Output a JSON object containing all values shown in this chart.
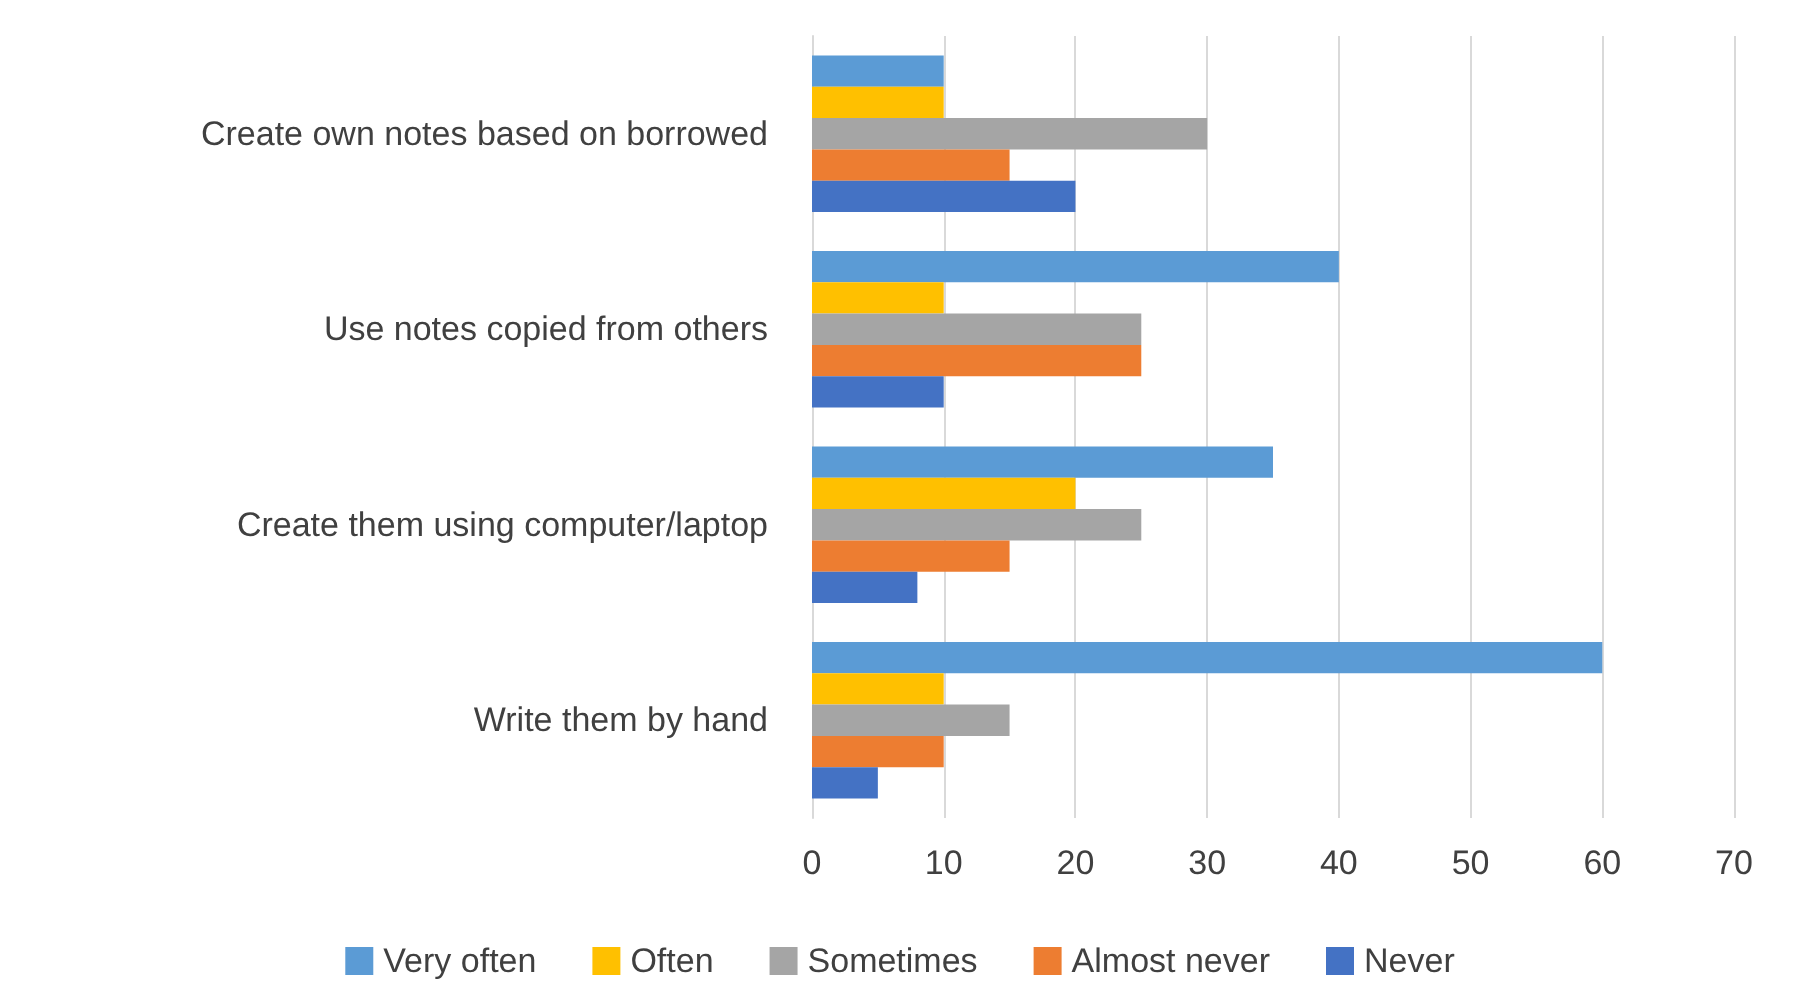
{
  "chart_data": {
    "type": "bar",
    "orientation": "horizontal",
    "categories": [
      "Create own notes based on borrowed",
      "Use notes copied from others",
      "Create them using computer/laptop",
      "Write them by hand"
    ],
    "series": [
      {
        "name": "Very often",
        "color": "#5b9bd5",
        "values": [
          10,
          40,
          35,
          60
        ]
      },
      {
        "name": "Often",
        "color": "#ffc000",
        "values": [
          10,
          10,
          20,
          10
        ]
      },
      {
        "name": "Sometimes",
        "color": "#a5a5a5",
        "values": [
          30,
          25,
          25,
          15
        ]
      },
      {
        "name": "Almost never",
        "color": "#ed7d31",
        "values": [
          15,
          25,
          15,
          10
        ]
      },
      {
        "name": "Never",
        "color": "#4472c4",
        "values": [
          20,
          10,
          8,
          5
        ]
      }
    ],
    "xlim": [
      0,
      70
    ],
    "xticks": [
      0,
      10,
      20,
      30,
      40,
      50,
      60,
      70
    ],
    "grid": "x",
    "legend": "bottom"
  }
}
